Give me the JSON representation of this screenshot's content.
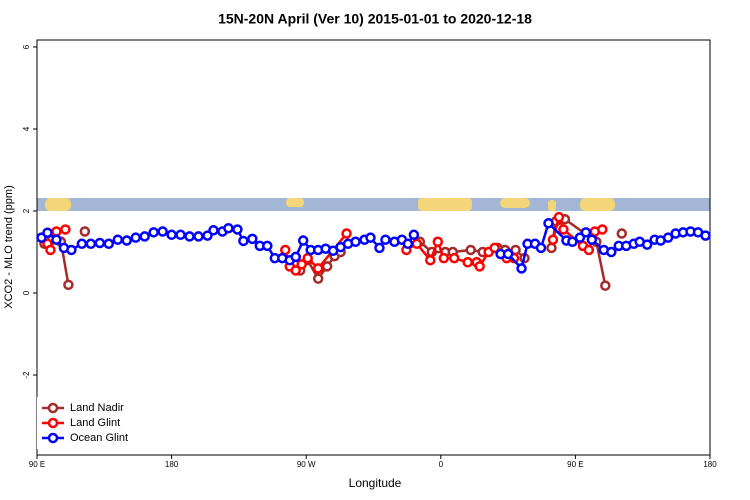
{
  "chart_data": {
    "type": "line",
    "title": "15N-20N April (Ver 10)   2015-01-01 to 2020-12-18",
    "x_label": "Longitude",
    "y_label": "XCO2 - MLO trend (ppm)",
    "xlim": [
      90,
      540
    ],
    "ylim": [
      -3.95,
      6.17
    ],
    "xticks": [
      {
        "value": 90,
        "label": "90 E"
      },
      {
        "value": 180,
        "label": "180"
      },
      {
        "value": 270,
        "label": "90 W"
      },
      {
        "value": 360,
        "label": "0"
      },
      {
        "value": 450,
        "label": "90 E"
      },
      {
        "value": 540,
        "label": "180"
      }
    ],
    "yticks": [
      -2,
      0,
      2,
      4,
      6
    ],
    "legend": "bottom-left",
    "series": [
      {
        "name": "Land Nadir",
        "color": "#a52a2a",
        "x": [
          95,
          100,
          106,
          111,
          null,
          122,
          null,
          266,
          271,
          278,
          284,
          289,
          293,
          null,
          346,
          354,
          363,
          368,
          380,
          388,
          398,
          403,
          410,
          416,
          null,
          434,
          437,
          443,
          464,
          470,
          null,
          481
        ],
        "values": [
          1.2,
          1.3,
          1.25,
          0.2,
          null,
          1.5,
          null,
          0.55,
          0.8,
          0.35,
          0.65,
          0.9,
          1.0,
          null,
          1.25,
          1.0,
          1.0,
          1.0,
          1.05,
          1.0,
          1.1,
          1.05,
          1.05,
          0.85,
          null,
          1.1,
          1.75,
          1.8,
          1.25,
          0.18,
          null,
          1.45
        ]
      },
      {
        "name": "Land Glint",
        "color": "#ff0000",
        "x": [
          97,
          99,
          103,
          109,
          null,
          256,
          259,
          263,
          267,
          271,
          278,
          297,
          null,
          337,
          344,
          353,
          358,
          362,
          369,
          378,
          384,
          386,
          392,
          396,
          404,
          409,
          null,
          435,
          439,
          442,
          455,
          459,
          463,
          468
        ],
        "values": [
          1.2,
          1.05,
          1.5,
          1.55,
          null,
          1.05,
          0.65,
          0.55,
          0.7,
          0.85,
          0.6,
          1.45,
          null,
          1.05,
          1.2,
          0.8,
          1.25,
          0.85,
          0.85,
          0.75,
          0.75,
          0.65,
          1.0,
          1.1,
          0.85,
          0.85,
          null,
          1.3,
          1.85,
          1.55,
          1.15,
          1.05,
          1.5,
          1.55
        ]
      },
      {
        "name": "Ocean Glint",
        "color": "#0000ff",
        "x": [
          93,
          97,
          103,
          108,
          113,
          120,
          126,
          132,
          138,
          144,
          150,
          156,
          162,
          168,
          174,
          180,
          186,
          192,
          198,
          204,
          208,
          214,
          218,
          224,
          228,
          234,
          239,
          244,
          249,
          254,
          259,
          263,
          268,
          273,
          278,
          283,
          288,
          293,
          298,
          303,
          309,
          313,
          319,
          323,
          329,
          334,
          338,
          342,
          null,
          400,
          405,
          414,
          418,
          423,
          427,
          432,
          444,
          448,
          453,
          457,
          461,
          469,
          474,
          479,
          484,
          489,
          493,
          498,
          503,
          507,
          512,
          517,
          522,
          527,
          532,
          537
        ],
        "values": [
          1.35,
          1.47,
          1.3,
          1.1,
          1.05,
          1.2,
          1.2,
          1.22,
          1.2,
          1.3,
          1.28,
          1.35,
          1.38,
          1.48,
          1.5,
          1.42,
          1.42,
          1.38,
          1.38,
          1.4,
          1.53,
          1.5,
          1.58,
          1.55,
          1.27,
          1.32,
          1.15,
          1.15,
          0.85,
          0.85,
          0.8,
          0.88,
          1.28,
          1.05,
          1.05,
          1.08,
          1.03,
          1.12,
          1.2,
          1.25,
          1.3,
          1.35,
          1.1,
          1.3,
          1.25,
          1.3,
          1.2,
          1.42,
          null,
          0.95,
          0.95,
          0.6,
          1.2,
          1.2,
          1.1,
          1.7,
          1.28,
          1.25,
          1.35,
          1.48,
          1.3,
          1.05,
          1.0,
          1.15,
          1.15,
          1.2,
          1.25,
          1.18,
          1.3,
          1.28,
          1.35,
          1.45,
          1.48,
          1.5,
          1.48,
          1.4
        ]
      }
    ]
  }
}
